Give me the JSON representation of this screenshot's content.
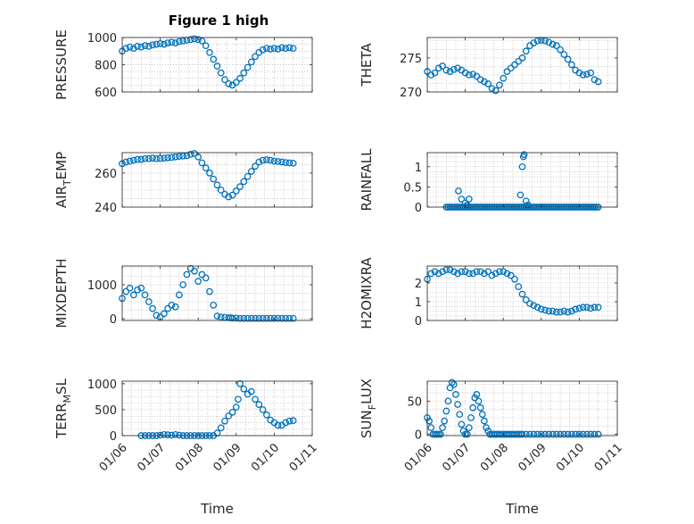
{
  "chart_data": [
    {
      "type": "scatter",
      "title": "Figure 1 high",
      "ylabel": "PRESSURE",
      "xlabel": "",
      "xlim": [
        0,
        5
      ],
      "ylim": [
        600,
        1000
      ],
      "yticks": [
        600,
        800,
        1000
      ],
      "ytick_labels": [
        "600",
        "800",
        "1000"
      ],
      "grid": true,
      "marker_color": "#0072BD",
      "x": [
        0.0,
        0.1,
        0.2,
        0.3,
        0.4,
        0.5,
        0.6,
        0.7,
        0.8,
        0.9,
        1.0,
        1.1,
        1.2,
        1.3,
        1.4,
        1.5,
        1.6,
        1.7,
        1.8,
        1.9,
        2.0,
        2.1,
        2.2,
        2.3,
        2.4,
        2.5,
        2.6,
        2.7,
        2.8,
        2.9,
        3.0,
        3.1,
        3.2,
        3.3,
        3.4,
        3.5,
        3.6,
        3.7,
        3.8,
        3.9,
        4.0,
        4.1,
        4.2,
        4.3,
        4.4,
        4.5
      ],
      "y": [
        900,
        920,
        930,
        920,
        935,
        930,
        940,
        935,
        945,
        950,
        955,
        950,
        960,
        965,
        960,
        970,
        975,
        980,
        985,
        990,
        985,
        975,
        940,
        890,
        840,
        790,
        740,
        690,
        660,
        650,
        670,
        700,
        740,
        780,
        820,
        860,
        890,
        910,
        920,
        915,
        920,
        915,
        925,
        920,
        925,
        920
      ]
    },
    {
      "type": "scatter",
      "ylabel": "THETA",
      "xlabel": "",
      "xlim": [
        0,
        5
      ],
      "ylim": [
        270,
        278
      ],
      "yticks": [
        270,
        275
      ],
      "ytick_labels": [
        "270",
        "275"
      ],
      "grid": true,
      "marker_color": "#0072BD",
      "x": [
        0.0,
        0.1,
        0.2,
        0.3,
        0.4,
        0.5,
        0.6,
        0.7,
        0.8,
        0.9,
        1.0,
        1.1,
        1.2,
        1.3,
        1.4,
        1.5,
        1.6,
        1.7,
        1.8,
        1.9,
        2.0,
        2.1,
        2.2,
        2.3,
        2.4,
        2.5,
        2.6,
        2.7,
        2.8,
        2.9,
        3.0,
        3.1,
        3.2,
        3.3,
        3.4,
        3.5,
        3.6,
        3.7,
        3.8,
        3.9,
        4.0,
        4.1,
        4.2,
        4.3,
        4.4,
        4.5
      ],
      "y": [
        273.0,
        272.5,
        272.8,
        273.5,
        273.8,
        273.2,
        273.0,
        273.3,
        273.5,
        273.2,
        272.8,
        272.5,
        272.6,
        272.3,
        271.8,
        271.5,
        271.2,
        270.5,
        270.2,
        271.0,
        272.0,
        273.0,
        273.5,
        274.0,
        274.5,
        275.0,
        276.0,
        276.8,
        277.2,
        277.5,
        277.6,
        277.5,
        277.3,
        277.0,
        276.8,
        276.2,
        275.5,
        274.8,
        274.0,
        273.2,
        272.8,
        272.5,
        272.6,
        272.8,
        271.8,
        271.5
      ]
    },
    {
      "type": "scatter",
      "ylabel": "AIR_TEMP",
      "ylabel_parts": [
        "AIR",
        "T",
        "EMP"
      ],
      "xlabel": "",
      "xlim": [
        0,
        5
      ],
      "ylim": [
        240,
        272
      ],
      "yticks": [
        240,
        260
      ],
      "ytick_labels": [
        "240",
        "260"
      ],
      "grid": true,
      "marker_color": "#0072BD",
      "x": [
        0.0,
        0.1,
        0.2,
        0.3,
        0.4,
        0.5,
        0.6,
        0.7,
        0.8,
        0.9,
        1.0,
        1.1,
        1.2,
        1.3,
        1.4,
        1.5,
        1.6,
        1.7,
        1.8,
        1.9,
        2.0,
        2.1,
        2.2,
        2.3,
        2.4,
        2.5,
        2.6,
        2.7,
        2.8,
        2.9,
        3.0,
        3.1,
        3.2,
        3.3,
        3.4,
        3.5,
        3.6,
        3.7,
        3.8,
        3.9,
        4.0,
        4.1,
        4.2,
        4.3,
        4.4,
        4.5
      ],
      "y": [
        265.5,
        266.5,
        267.0,
        267.5,
        268.0,
        268.0,
        268.5,
        268.5,
        268.8,
        268.5,
        268.6,
        268.8,
        269.0,
        269.2,
        269.5,
        269.8,
        270.0,
        270.2,
        271.0,
        271.5,
        269.5,
        266.0,
        263.0,
        260.0,
        256.5,
        253.0,
        250.0,
        247.5,
        246.0,
        247.0,
        249.5,
        252.0,
        255.0,
        258.0,
        261.0,
        264.0,
        266.5,
        267.5,
        267.8,
        267.5,
        267.0,
        266.8,
        266.5,
        266.2,
        266.0,
        265.8
      ]
    },
    {
      "type": "scatter",
      "ylabel": "RAINFALL",
      "xlabel": "",
      "xlim": [
        0,
        5
      ],
      "ylim": [
        0,
        1.35
      ],
      "yticks": [
        0,
        0.5,
        1
      ],
      "ytick_labels": [
        "0",
        "0.5",
        "1"
      ],
      "grid": true,
      "marker_color": "#0072BD",
      "x": [
        0.5,
        0.55,
        0.6,
        0.65,
        0.7,
        0.75,
        0.8,
        0.85,
        0.9,
        0.95,
        1.0,
        1.05,
        1.1,
        1.15,
        1.2,
        1.25,
        1.3,
        1.35,
        1.4,
        1.45,
        1.5,
        1.55,
        1.6,
        1.65,
        1.7,
        1.75,
        1.8,
        1.85,
        1.9,
        1.95,
        2.0,
        2.05,
        2.1,
        2.15,
        2.2,
        2.25,
        2.3,
        2.35,
        2.4,
        2.45,
        2.5,
        2.55,
        2.6,
        2.65,
        2.7,
        2.75,
        2.8,
        2.85,
        2.9,
        2.95,
        3.0,
        3.05,
        3.1,
        3.15,
        3.2,
        3.25,
        3.3,
        3.35,
        3.4,
        3.45,
        3.5,
        3.55,
        3.6,
        3.65,
        3.7,
        3.75,
        3.8,
        3.85,
        3.9,
        3.95,
        4.0,
        4.05,
        4.1,
        4.15,
        4.2,
        4.25,
        4.3,
        4.35,
        4.4,
        4.45,
        4.5,
        0.82,
        0.9,
        1.0,
        1.1,
        1.05,
        2.45,
        2.5,
        2.53,
        2.55,
        2.6,
        2.65
      ],
      "y": [
        0,
        0,
        0,
        0,
        0,
        0,
        0,
        0,
        0,
        0,
        0,
        0,
        0,
        0,
        0,
        0,
        0,
        0,
        0,
        0,
        0,
        0,
        0,
        0,
        0,
        0,
        0,
        0,
        0,
        0,
        0,
        0,
        0,
        0,
        0,
        0,
        0,
        0,
        0,
        0,
        0,
        0,
        0,
        0,
        0,
        0,
        0,
        0,
        0,
        0,
        0,
        0,
        0,
        0,
        0,
        0,
        0,
        0,
        0,
        0,
        0,
        0,
        0,
        0,
        0,
        0,
        0,
        0,
        0,
        0,
        0,
        0,
        0,
        0,
        0,
        0,
        0,
        0,
        0,
        0,
        0,
        0.4,
        0.2,
        0.1,
        0.2,
        0.05,
        0.3,
        1.0,
        1.25,
        1.3,
        0.15,
        0.05
      ]
    },
    {
      "type": "scatter",
      "ylabel": "MIXDEPTH",
      "xlabel": "",
      "xlim": [
        0,
        5
      ],
      "ylim": [
        -50,
        1550
      ],
      "yticks": [
        0,
        1000
      ],
      "ytick_labels": [
        "0",
        "1000"
      ],
      "grid": true,
      "marker_color": "#0072BD",
      "x": [
        0.0,
        0.1,
        0.2,
        0.3,
        0.4,
        0.5,
        0.6,
        0.7,
        0.8,
        0.9,
        1.0,
        1.1,
        1.2,
        1.3,
        1.4,
        1.5,
        1.6,
        1.7,
        1.8,
        1.9,
        2.0,
        2.1,
        2.2,
        2.3,
        2.4,
        2.5,
        2.6,
        2.7,
        2.8,
        2.85,
        2.9,
        3.0,
        3.1,
        3.2,
        3.3,
        3.4,
        3.5,
        3.6,
        3.7,
        3.8,
        3.9,
        4.0,
        4.1,
        4.2,
        4.3,
        4.4,
        4.5
      ],
      "y": [
        600,
        800,
        900,
        700,
        850,
        900,
        700,
        500,
        300,
        100,
        50,
        150,
        300,
        400,
        350,
        700,
        1000,
        1300,
        1480,
        1400,
        1100,
        1300,
        1200,
        800,
        400,
        80,
        50,
        40,
        30,
        30,
        20,
        20,
        10,
        10,
        10,
        10,
        10,
        10,
        10,
        10,
        10,
        10,
        10,
        10,
        10,
        10,
        10
      ]
    },
    {
      "type": "scatter",
      "ylabel": "H2OMIXRA",
      "xlabel": "",
      "xlim": [
        0,
        5
      ],
      "ylim": [
        0,
        2.9
      ],
      "yticks": [
        0,
        1,
        2
      ],
      "ytick_labels": [
        "0",
        "1",
        "2"
      ],
      "grid": true,
      "marker_color": "#0072BD",
      "x": [
        0.0,
        0.1,
        0.2,
        0.3,
        0.4,
        0.5,
        0.6,
        0.7,
        0.8,
        0.9,
        1.0,
        1.1,
        1.2,
        1.3,
        1.4,
        1.5,
        1.6,
        1.7,
        1.8,
        1.9,
        2.0,
        2.1,
        2.2,
        2.3,
        2.4,
        2.5,
        2.6,
        2.7,
        2.8,
        2.9,
        3.0,
        3.1,
        3.2,
        3.3,
        3.4,
        3.5,
        3.6,
        3.7,
        3.8,
        3.9,
        4.0,
        4.1,
        4.2,
        4.3,
        4.4,
        4.5
      ],
      "y": [
        2.2,
        2.5,
        2.6,
        2.5,
        2.6,
        2.7,
        2.7,
        2.6,
        2.5,
        2.6,
        2.6,
        2.5,
        2.5,
        2.6,
        2.6,
        2.5,
        2.6,
        2.4,
        2.5,
        2.6,
        2.6,
        2.5,
        2.4,
        2.2,
        1.8,
        1.4,
        1.1,
        0.9,
        0.8,
        0.7,
        0.6,
        0.55,
        0.5,
        0.5,
        0.45,
        0.45,
        0.5,
        0.45,
        0.5,
        0.6,
        0.65,
        0.7,
        0.7,
        0.65,
        0.7,
        0.7
      ]
    },
    {
      "type": "scatter",
      "ylabel": "TERR_MSL",
      "ylabel_parts": [
        "TERR",
        "M",
        "SL"
      ],
      "xlabel": "Time",
      "xlim": [
        0,
        5
      ],
      "ylim": [
        0,
        1050
      ],
      "yticks": [
        0,
        500,
        1000
      ],
      "ytick_labels": [
        "0",
        "500",
        "1000"
      ],
      "xticks": [
        0,
        1,
        2,
        3,
        4,
        5
      ],
      "xtick_labels": [
        "01/06",
        "01/07",
        "01/08",
        "01/09",
        "01/10",
        "01/11"
      ],
      "grid": true,
      "marker_color": "#0072BD",
      "x": [
        0.5,
        0.6,
        0.7,
        0.8,
        0.9,
        1.0,
        1.1,
        1.2,
        1.3,
        1.4,
        1.5,
        1.6,
        1.7,
        1.8,
        1.9,
        2.0,
        2.1,
        2.2,
        2.3,
        2.4,
        2.5,
        2.6,
        2.7,
        2.8,
        2.9,
        3.0,
        3.05,
        3.1,
        3.2,
        3.3,
        3.4,
        3.5,
        3.6,
        3.7,
        3.8,
        3.9,
        4.0,
        4.1,
        4.2,
        4.3,
        4.4,
        4.5
      ],
      "y": [
        0,
        0,
        0,
        0,
        0,
        10,
        20,
        15,
        10,
        20,
        10,
        0,
        0,
        0,
        0,
        0,
        0,
        0,
        0,
        0,
        50,
        150,
        280,
        380,
        450,
        550,
        700,
        1000,
        900,
        800,
        850,
        700,
        600,
        500,
        400,
        300,
        250,
        200,
        200,
        250,
        280,
        290
      ]
    },
    {
      "type": "scatter",
      "ylabel": "SUN_FLUX",
      "ylabel_parts": [
        "SUN",
        "F",
        "LUX"
      ],
      "xlabel": "Time",
      "xlim": [
        0,
        5
      ],
      "ylim": [
        -2,
        80
      ],
      "yticks": [
        0,
        50
      ],
      "ytick_labels": [
        "0",
        "50"
      ],
      "xticks": [
        0,
        1,
        2,
        3,
        4,
        5
      ],
      "xtick_labels": [
        "01/06",
        "01/07",
        "01/08",
        "01/09",
        "01/10",
        "01/11"
      ],
      "grid": true,
      "marker_color": "#0072BD",
      "x": [
        0.0,
        0.05,
        0.1,
        0.15,
        0.2,
        0.25,
        0.3,
        0.35,
        0.4,
        0.45,
        0.5,
        0.55,
        0.6,
        0.65,
        0.7,
        0.75,
        0.8,
        0.85,
        0.9,
        0.95,
        1.0,
        1.05,
        1.1,
        1.15,
        1.2,
        1.25,
        1.3,
        1.35,
        1.4,
        1.45,
        1.5,
        1.55,
        1.6,
        1.65,
        1.7,
        1.75,
        1.8,
        1.85,
        1.9,
        1.95,
        2.0,
        2.05,
        2.1,
        2.15,
        2.2,
        2.25,
        2.3,
        2.35,
        2.4,
        2.45,
        2.5,
        2.6,
        2.7,
        2.8,
        2.9,
        3.0,
        3.1,
        3.2,
        3.3,
        3.4,
        3.5,
        3.6,
        3.7,
        3.8,
        3.9,
        4.0,
        4.1,
        4.2,
        4.3,
        4.4,
        4.5
      ],
      "y": [
        25,
        20,
        10,
        0,
        0,
        0,
        0,
        0,
        10,
        20,
        35,
        50,
        70,
        78,
        75,
        60,
        45,
        30,
        15,
        5,
        0,
        0,
        10,
        25,
        40,
        55,
        60,
        50,
        40,
        30,
        20,
        10,
        5,
        0,
        0,
        0,
        0,
        0,
        0,
        0,
        0,
        0,
        0,
        0,
        0,
        0,
        0,
        0,
        0,
        0,
        0,
        0,
        0,
        0,
        0,
        0,
        0,
        0,
        0,
        0,
        0,
        0,
        0,
        0,
        0,
        0,
        0,
        0,
        0,
        0,
        0
      ]
    }
  ]
}
